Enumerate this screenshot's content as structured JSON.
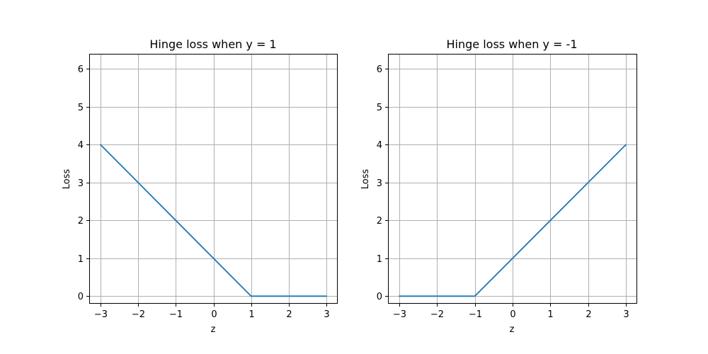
{
  "chart_data": [
    {
      "type": "line",
      "title": "Hinge loss when y = 1",
      "xlabel": "z",
      "ylabel": "Loss",
      "xlim": [
        -3.3,
        3.3
      ],
      "ylim": [
        -0.2,
        6.4
      ],
      "xticks": [
        -3,
        -2,
        -1,
        0,
        1,
        2,
        3
      ],
      "xtick_labels": [
        "−3",
        "−2",
        "−1",
        "0",
        "1",
        "2",
        "3"
      ],
      "yticks": [
        0,
        1,
        2,
        3,
        4,
        5,
        6
      ],
      "ytick_labels": [
        "0",
        "1",
        "2",
        "3",
        "4",
        "5",
        "6"
      ],
      "grid": true,
      "series": [
        {
          "x": [
            -3,
            1,
            3
          ],
          "y": [
            4,
            0,
            0
          ],
          "color": "#1f77b4"
        }
      ]
    },
    {
      "type": "line",
      "title": "Hinge loss when y = -1",
      "xlabel": "z",
      "ylabel": "Loss",
      "xlim": [
        -3.3,
        3.3
      ],
      "ylim": [
        -0.2,
        6.4
      ],
      "xticks": [
        -3,
        -2,
        -1,
        0,
        1,
        2,
        3
      ],
      "xtick_labels": [
        "−3",
        "−2",
        "−1",
        "0",
        "1",
        "2",
        "3"
      ],
      "yticks": [
        0,
        1,
        2,
        3,
        4,
        5,
        6
      ],
      "ytick_labels": [
        "0",
        "1",
        "2",
        "3",
        "4",
        "5",
        "6"
      ],
      "grid": true,
      "series": [
        {
          "x": [
            -3,
            -1,
            3
          ],
          "y": [
            0,
            0,
            4
          ],
          "color": "#1f77b4"
        }
      ]
    }
  ]
}
